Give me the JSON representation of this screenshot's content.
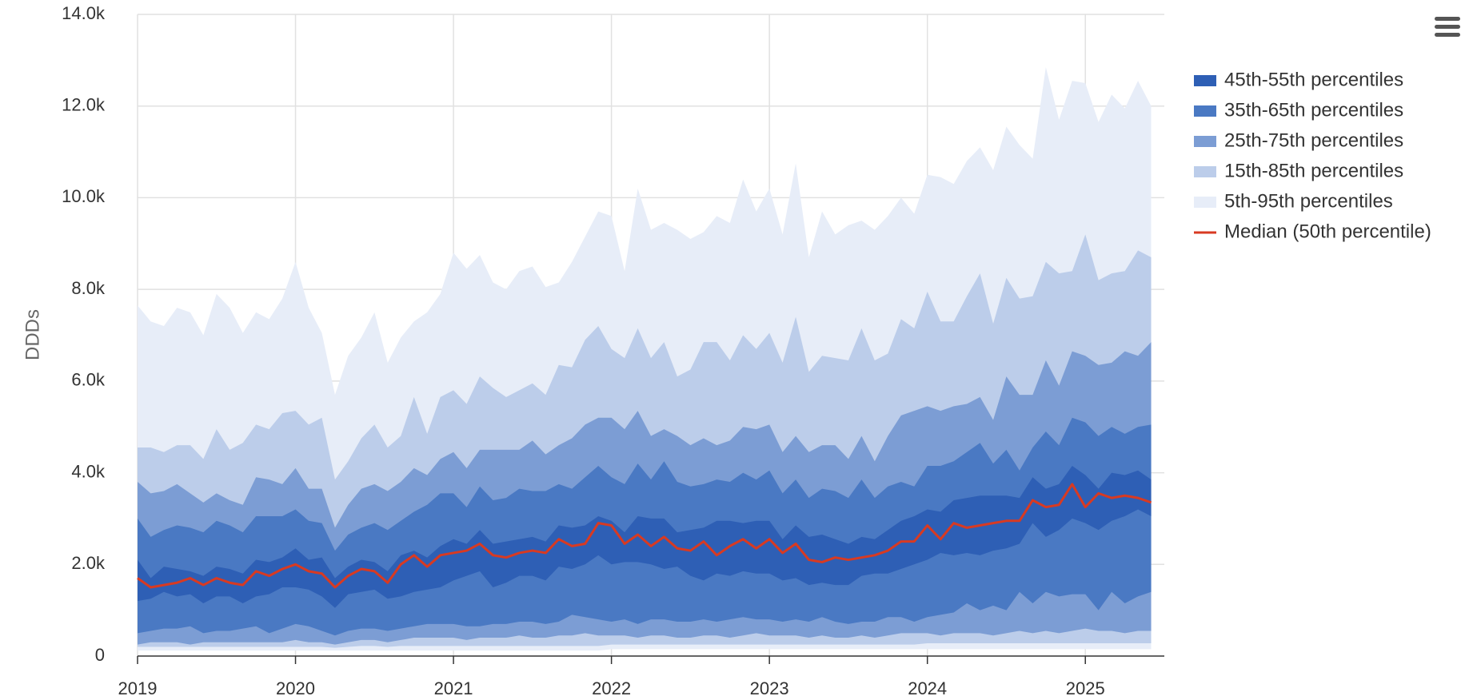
{
  "chart_data": {
    "type": "percentile-bands",
    "y_label": "DDDs",
    "x": [
      "2019-01",
      "2019-02",
      "2019-03",
      "2019-04",
      "2019-05",
      "2019-06",
      "2019-07",
      "2019-08",
      "2019-09",
      "2019-10",
      "2019-11",
      "2019-12",
      "2020-01",
      "2020-02",
      "2020-03",
      "2020-04",
      "2020-05",
      "2020-06",
      "2020-07",
      "2020-08",
      "2020-09",
      "2020-10",
      "2020-11",
      "2020-12",
      "2021-01",
      "2021-02",
      "2021-03",
      "2021-04",
      "2021-05",
      "2021-06",
      "2021-07",
      "2021-08",
      "2021-09",
      "2021-10",
      "2021-11",
      "2021-12",
      "2022-01",
      "2022-02",
      "2022-03",
      "2022-04",
      "2022-05",
      "2022-06",
      "2022-07",
      "2022-08",
      "2022-09",
      "2022-10",
      "2022-11",
      "2022-12",
      "2023-01",
      "2023-02",
      "2023-03",
      "2023-04",
      "2023-05",
      "2023-06",
      "2023-07",
      "2023-08",
      "2023-09",
      "2023-10",
      "2023-11",
      "2023-12",
      "2024-01",
      "2024-02",
      "2024-03",
      "2024-04",
      "2024-05",
      "2024-06",
      "2024-07",
      "2024-08",
      "2024-09",
      "2024-10",
      "2024-11",
      "2024-12",
      "2025-01",
      "2025-02",
      "2025-03",
      "2025-04",
      "2025-05",
      "2025-06"
    ],
    "xlim": [
      "2019-01",
      "2025-07"
    ],
    "xticks": [
      {
        "value": "2019-01",
        "label": "2019"
      },
      {
        "value": "2020-01",
        "label": "2020"
      },
      {
        "value": "2021-01",
        "label": "2021"
      },
      {
        "value": "2022-01",
        "label": "2022"
      },
      {
        "value": "2023-01",
        "label": "2023"
      },
      {
        "value": "2024-01",
        "label": "2024"
      },
      {
        "value": "2025-01",
        "label": "2025"
      }
    ],
    "ylim": [
      0,
      14000
    ],
    "yticks": [
      0,
      {
        "value": 2000,
        "label": "2.0k"
      },
      {
        "value": 4000,
        "label": "4.0k"
      },
      {
        "value": 6000,
        "label": "6.0k"
      },
      {
        "value": 8000,
        "label": "8.0k"
      },
      {
        "value": 10000,
        "label": "10.0k"
      },
      {
        "value": 12000,
        "label": "12.0k"
      },
      {
        "value": 14000,
        "label": "14.0k"
      }
    ],
    "grid": true,
    "legend": "right",
    "series": [
      {
        "name": "45th-55th percentiles",
        "color": "#2e5fb5",
        "low": [
          1200,
          1250,
          1400,
          1300,
          1350,
          1150,
          1300,
          1300,
          1150,
          1300,
          1350,
          1500,
          1500,
          1450,
          1300,
          1050,
          1350,
          1400,
          1450,
          1250,
          1300,
          1400,
          1450,
          1500,
          1650,
          1750,
          1850,
          1500,
          1600,
          1750,
          1750,
          1650,
          1950,
          1900,
          2000,
          2200,
          2000,
          2050,
          2050,
          2000,
          1900,
          1950,
          1750,
          1650,
          1800,
          1750,
          1850,
          1800,
          1800,
          1650,
          1700,
          1550,
          1600,
          1550,
          1550,
          1750,
          1800,
          1800,
          1900,
          2000,
          2100,
          2250,
          2200,
          2250,
          2200,
          2300,
          2350,
          2450,
          2900,
          2600,
          2750,
          3000,
          2900,
          2750,
          2950,
          3050,
          3200,
          3050
        ],
        "high": [
          2100,
          1700,
          1950,
          1900,
          1850,
          1750,
          1950,
          1900,
          1800,
          2100,
          2050,
          2150,
          2350,
          2100,
          2150,
          1700,
          1950,
          2100,
          2050,
          1850,
          2200,
          2300,
          2150,
          2400,
          2550,
          2450,
          2750,
          2450,
          2500,
          2550,
          2600,
          2500,
          2850,
          2800,
          2850,
          3050,
          2950,
          2700,
          3050,
          3000,
          3000,
          2700,
          2750,
          2800,
          2950,
          2950,
          2900,
          2950,
          2950,
          2550,
          2850,
          2600,
          2650,
          2550,
          2450,
          2600,
          2550,
          2750,
          2950,
          3050,
          3200,
          3150,
          3400,
          3450,
          3500,
          3500,
          3500,
          3450,
          3900,
          3650,
          3750,
          4150,
          3950,
          3650,
          4000,
          3950,
          4050,
          3850
        ]
      },
      {
        "name": "35th-65th percentiles",
        "color": "#4a79c3",
        "low": [
          500,
          550,
          600,
          600,
          650,
          500,
          550,
          550,
          600,
          650,
          500,
          600,
          700,
          650,
          550,
          450,
          550,
          600,
          600,
          550,
          600,
          650,
          700,
          700,
          700,
          650,
          650,
          700,
          700,
          750,
          750,
          700,
          750,
          900,
          850,
          800,
          750,
          800,
          700,
          800,
          800,
          750,
          750,
          800,
          750,
          800,
          850,
          800,
          800,
          750,
          800,
          750,
          850,
          750,
          700,
          750,
          750,
          850,
          850,
          750,
          850,
          900,
          950,
          1150,
          1000,
          1100,
          1000,
          1400,
          1150,
          1400,
          1300,
          1350,
          1350,
          1000,
          1400,
          1150,
          1300,
          1400
        ],
        "high": [
          3000,
          2600,
          2750,
          2850,
          2800,
          2700,
          2950,
          2850,
          2700,
          3050,
          3050,
          3050,
          3200,
          2950,
          2900,
          2300,
          2650,
          2800,
          2900,
          2750,
          2950,
          3150,
          3300,
          3550,
          3550,
          3250,
          3700,
          3400,
          3450,
          3650,
          3600,
          3600,
          3750,
          3650,
          3900,
          4150,
          3900,
          3750,
          4200,
          3850,
          4250,
          3800,
          3700,
          3750,
          3850,
          3800,
          4000,
          3850,
          4050,
          3550,
          3850,
          3450,
          3650,
          3600,
          3450,
          3850,
          3450,
          3700,
          3800,
          3700,
          4150,
          4150,
          4250,
          4450,
          4650,
          4200,
          4500,
          4050,
          4550,
          4900,
          4600,
          5200,
          5100,
          4800,
          5000,
          4850,
          5000,
          5050
        ]
      },
      {
        "name": "25th-75th percentiles",
        "color": "#7c9dd4",
        "low": [
          250,
          300,
          300,
          300,
          250,
          300,
          300,
          300,
          300,
          300,
          300,
          300,
          350,
          300,
          300,
          250,
          300,
          350,
          350,
          300,
          350,
          400,
          400,
          400,
          400,
          350,
          400,
          400,
          400,
          450,
          400,
          400,
          450,
          450,
          500,
          450,
          450,
          450,
          400,
          450,
          450,
          400,
          400,
          450,
          450,
          400,
          450,
          500,
          450,
          450,
          450,
          400,
          450,
          400,
          400,
          450,
          400,
          450,
          500,
          500,
          500,
          450,
          500,
          500,
          500,
          450,
          500,
          550,
          500,
          550,
          500,
          550,
          600,
          550,
          550,
          500,
          550,
          550
        ],
        "high": [
          3800,
          3550,
          3600,
          3750,
          3550,
          3350,
          3550,
          3400,
          3300,
          3900,
          3850,
          3750,
          4100,
          3650,
          3650,
          2800,
          3300,
          3650,
          3750,
          3600,
          3800,
          4100,
          3950,
          4300,
          4450,
          4100,
          4500,
          4500,
          4500,
          4500,
          4700,
          4400,
          4600,
          4750,
          5050,
          5200,
          5200,
          4950,
          5350,
          4800,
          4950,
          4800,
          4600,
          4750,
          4600,
          4700,
          5000,
          4950,
          5050,
          4450,
          4800,
          4450,
          4600,
          4600,
          4300,
          4800,
          4250,
          4800,
          5250,
          5350,
          5450,
          5350,
          5450,
          5500,
          5650,
          5150,
          6100,
          5700,
          5700,
          6450,
          5900,
          6650,
          6550,
          6350,
          6400,
          6650,
          6550,
          6850
        ]
      },
      {
        "name": "15th-85th percentiles",
        "color": "#bccdea",
        "low": [
          200,
          200,
          200,
          200,
          200,
          200,
          200,
          200,
          200,
          200,
          200,
          200,
          200,
          200,
          200,
          180,
          200,
          220,
          220,
          200,
          220,
          220,
          220,
          220,
          220,
          220,
          220,
          220,
          220,
          220,
          220,
          220,
          220,
          220,
          220,
          220,
          250,
          250,
          250,
          250,
          250,
          250,
          250,
          250,
          250,
          250,
          250,
          250,
          250,
          250,
          250,
          250,
          250,
          250,
          250,
          250,
          250,
          250,
          250,
          250,
          280,
          280,
          280,
          280,
          280,
          280,
          280,
          280,
          280,
          280,
          280,
          280,
          280,
          280,
          280,
          280,
          280,
          280
        ],
        "high": [
          4550,
          4550,
          4450,
          4600,
          4600,
          4300,
          4950,
          4500,
          4650,
          5050,
          4950,
          5300,
          5350,
          5050,
          5200,
          3850,
          4250,
          4750,
          5050,
          4550,
          4800,
          5650,
          4850,
          5650,
          5800,
          5500,
          6100,
          5850,
          5650,
          5800,
          5950,
          5700,
          6350,
          6300,
          6900,
          7200,
          6700,
          6500,
          7150,
          6500,
          6850,
          6100,
          6250,
          6850,
          6850,
          6450,
          7000,
          6700,
          7050,
          6400,
          7400,
          6200,
          6550,
          6500,
          6450,
          7150,
          6450,
          6600,
          7350,
          7150,
          7950,
          7300,
          7300,
          7850,
          8350,
          7250,
          8250,
          7800,
          7850,
          8600,
          8350,
          8400,
          9200,
          8200,
          8350,
          8400,
          8850,
          8700
        ]
      },
      {
        "name": "5th-95th percentiles",
        "color": "#e7edf8",
        "low": [
          120,
          120,
          120,
          120,
          120,
          120,
          120,
          120,
          120,
          120,
          120,
          120,
          120,
          120,
          120,
          120,
          120,
          120,
          120,
          120,
          120,
          120,
          120,
          120,
          120,
          120,
          120,
          120,
          120,
          120,
          120,
          120,
          120,
          120,
          120,
          120,
          150,
          150,
          150,
          150,
          150,
          150,
          150,
          150,
          150,
          150,
          150,
          150,
          150,
          150,
          150,
          150,
          150,
          150,
          150,
          150,
          150,
          150,
          150,
          150,
          150,
          150,
          150,
          150,
          150,
          150,
          150,
          150,
          150,
          150,
          150,
          150,
          150,
          150,
          150,
          150,
          150,
          150
        ],
        "high": [
          7650,
          7300,
          7200,
          7600,
          7500,
          7000,
          7900,
          7600,
          7050,
          7500,
          7350,
          7800,
          8600,
          7600,
          7050,
          5700,
          6550,
          6950,
          7500,
          6400,
          6950,
          7300,
          7500,
          7900,
          8800,
          8450,
          8750,
          8150,
          8000,
          8400,
          8500,
          8050,
          8150,
          8600,
          9150,
          9700,
          9600,
          8400,
          10200,
          9300,
          9450,
          9300,
          9100,
          9250,
          9600,
          9450,
          10400,
          9700,
          10200,
          9200,
          10750,
          8700,
          9700,
          9200,
          9400,
          9500,
          9300,
          9600,
          10000,
          9650,
          10500,
          10450,
          10300,
          10800,
          11100,
          10600,
          11550,
          11150,
          10850,
          12850,
          11700,
          12550,
          12500,
          11650,
          12250,
          11950,
          12550,
          12000
        ]
      },
      {
        "name": "Median (50th percentile)",
        "color": "#d83a22",
        "values": [
          1700,
          1500,
          1550,
          1600,
          1700,
          1550,
          1700,
          1600,
          1550,
          1850,
          1750,
          1900,
          2000,
          1850,
          1800,
          1500,
          1750,
          1900,
          1850,
          1600,
          2000,
          2200,
          1950,
          2200,
          2250,
          2300,
          2450,
          2200,
          2150,
          2250,
          2300,
          2250,
          2550,
          2400,
          2450,
          2900,
          2850,
          2450,
          2650,
          2400,
          2600,
          2350,
          2300,
          2500,
          2200,
          2400,
          2550,
          2350,
          2550,
          2250,
          2450,
          2100,
          2050,
          2150,
          2100,
          2150,
          2200,
          2300,
          2500,
          2500,
          2850,
          2550,
          2900,
          2800,
          2850,
          2900,
          2950,
          2950,
          3400,
          3250,
          3300,
          3750,
          3250,
          3550,
          3450,
          3500,
          3450,
          3350
        ]
      }
    ]
  }
}
